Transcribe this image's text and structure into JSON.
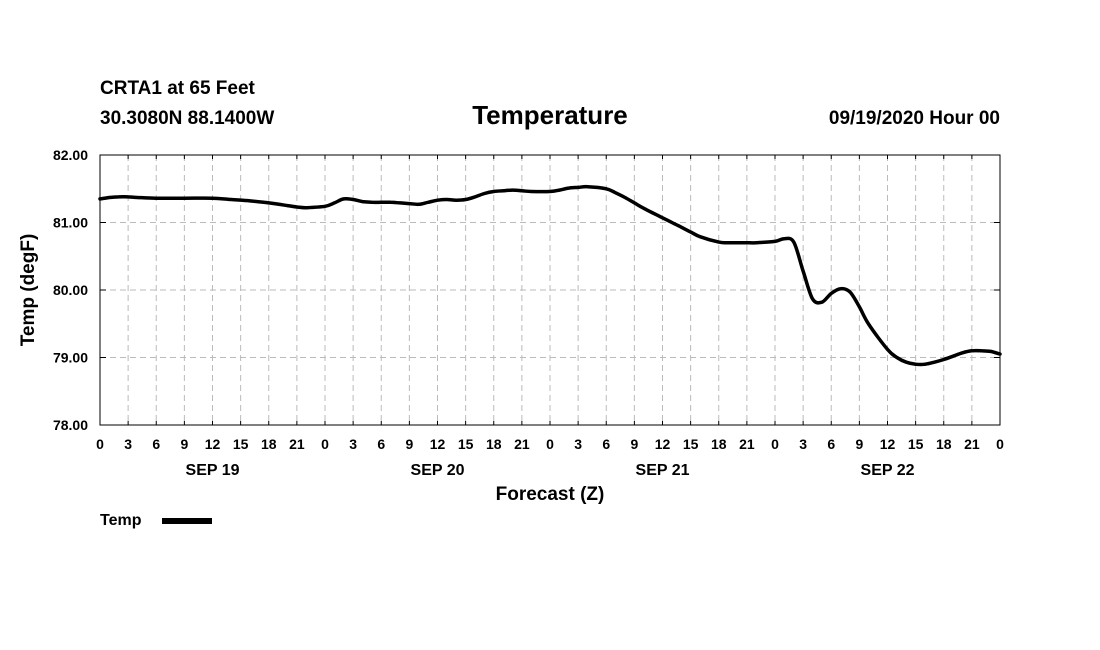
{
  "header": {
    "station": "CRTA1 at 65 Feet",
    "coords": "30.3080N 88.1400W",
    "title": "Temperature",
    "datetime": "09/19/2020 Hour 00"
  },
  "colors": {
    "line": "#000000",
    "grid": "#bbbbbb",
    "axis": "#000000"
  },
  "chart_data": {
    "type": "line",
    "title": "Temperature",
    "xlabel": "Forecast (Z)",
    "ylabel": "Temp (degF)",
    "ylim": [
      78.0,
      82.0
    ],
    "yticks": [
      "78.00",
      "79.00",
      "80.00",
      "81.00",
      "82.00"
    ],
    "xlim_hours": [
      0,
      96
    ],
    "x_tick_labels": [
      "0",
      "3",
      "6",
      "9",
      "12",
      "15",
      "18",
      "21",
      "0",
      "3",
      "6",
      "9",
      "12",
      "15",
      "18",
      "21",
      "0",
      "3",
      "6",
      "9",
      "12",
      "15",
      "18",
      "21",
      "0",
      "3",
      "6",
      "9",
      "12",
      "15",
      "18",
      "21",
      "0"
    ],
    "day_labels": [
      {
        "label": "SEP 19",
        "hour": 12
      },
      {
        "label": "SEP 20",
        "hour": 36
      },
      {
        "label": "SEP 21",
        "hour": 60
      },
      {
        "label": "SEP 22",
        "hour": 84
      }
    ],
    "grid": true,
    "legend": {
      "position": "bottom-left",
      "entries": [
        "Temp"
      ]
    },
    "series": [
      {
        "name": "Temp",
        "x": [
          0,
          1,
          2,
          3,
          4,
          6,
          9,
          12,
          14,
          16,
          18,
          20,
          21,
          22,
          24,
          25,
          26,
          27,
          28,
          29,
          30,
          31,
          32,
          33,
          34,
          35,
          36,
          37,
          38,
          39,
          40,
          41,
          42,
          43,
          44,
          45,
          46,
          48,
          49,
          50,
          51,
          52,
          54,
          55,
          56,
          57,
          58,
          60,
          61,
          62,
          63,
          64,
          66,
          67,
          68,
          69,
          70,
          72,
          73,
          74,
          75,
          76,
          77,
          78,
          79,
          80,
          81,
          82,
          84,
          85,
          86,
          87,
          88,
          89,
          90,
          91,
          92,
          93,
          94,
          95,
          96
        ],
        "y": [
          81.35,
          81.37,
          81.38,
          81.38,
          81.37,
          81.36,
          81.36,
          81.36,
          81.34,
          81.32,
          81.29,
          81.25,
          81.23,
          81.22,
          81.24,
          81.29,
          81.35,
          81.34,
          81.31,
          81.3,
          81.3,
          81.3,
          81.29,
          81.28,
          81.27,
          81.3,
          81.33,
          81.34,
          81.33,
          81.34,
          81.38,
          81.43,
          81.46,
          81.47,
          81.48,
          81.47,
          81.46,
          81.46,
          81.48,
          81.51,
          81.52,
          81.53,
          81.5,
          81.44,
          81.37,
          81.29,
          81.21,
          81.07,
          81.0,
          80.93,
          80.86,
          80.79,
          80.71,
          80.7,
          80.7,
          80.7,
          80.7,
          80.72,
          80.76,
          80.71,
          80.28,
          79.87,
          79.82,
          79.95,
          80.02,
          79.97,
          79.75,
          79.49,
          79.12,
          79.0,
          78.93,
          78.9,
          78.9,
          78.93,
          78.97,
          79.02,
          79.07,
          79.1,
          79.1,
          79.09,
          79.05
        ]
      }
    ]
  }
}
